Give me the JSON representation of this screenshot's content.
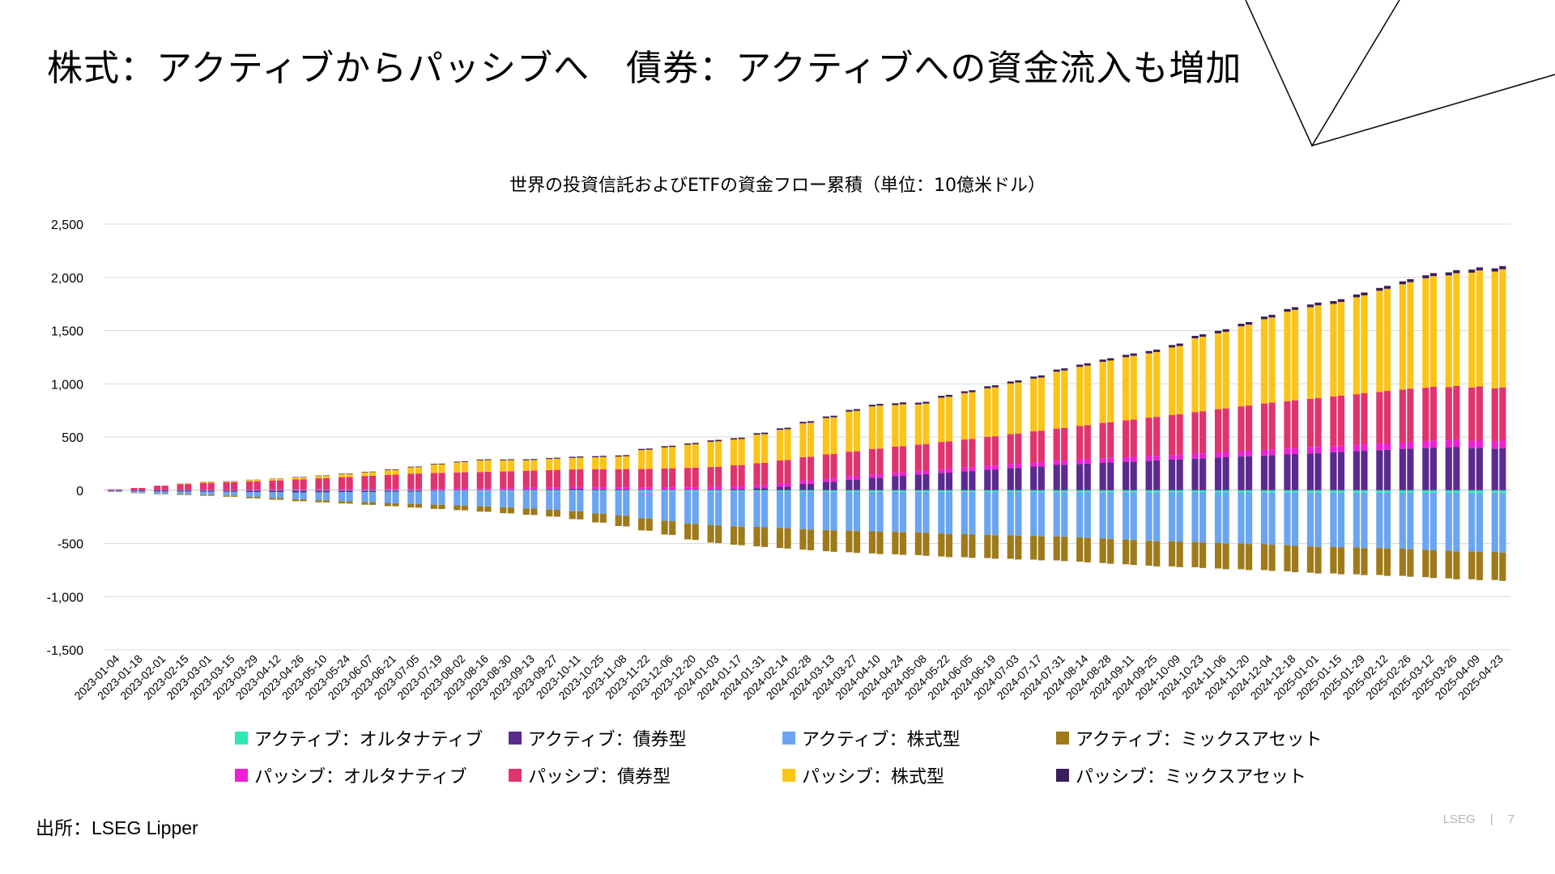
{
  "slide": {
    "title": "株式：アクティブからパッシブへ　債券：アクティブへの資金流入も増加",
    "source": "出所：LSEG Lipper",
    "footer_brand": "LSEG",
    "footer_sep": "|",
    "page_number": "7"
  },
  "chart_data": {
    "type": "bar",
    "stacked": true,
    "title": "世界の投資信託およびETFの資金フロー累積（単位：10億米ドル）",
    "ylim": [
      -1500,
      2500
    ],
    "yticks": [
      2500,
      2000,
      1500,
      1000,
      500,
      0,
      -500,
      -1000,
      -1500
    ],
    "ytick_labels": [
      "2,500",
      "2,000",
      "1,500",
      "1,000",
      "500",
      "0",
      "-500",
      "-1,000",
      "-1,500"
    ],
    "grid": true,
    "legend_position": "bottom",
    "xtick_labels": [
      "2023-01-04",
      "2023-01-18",
      "2023-02-01",
      "2023-02-15",
      "2023-03-01",
      "2023-03-15",
      "2023-03-29",
      "2023-04-12",
      "2023-04-26",
      "2023-05-10",
      "2023-05-24",
      "2023-06-07",
      "2023-06-21",
      "2023-07-05",
      "2023-07-19",
      "2023-08-02",
      "2023-08-16",
      "2023-08-30",
      "2023-09-13",
      "2023-09-27",
      "2023-10-11",
      "2023-10-25",
      "2023-11-08",
      "2023-11-22",
      "2023-12-06",
      "2023-12-20",
      "2024-01-03",
      "2024-01-17",
      "2024-01-31",
      "2024-02-14",
      "2024-02-28",
      "2024-03-13",
      "2024-03-27",
      "2024-04-10",
      "2024-04-24",
      "2024-05-08",
      "2024-05-22",
      "2024-06-05",
      "2024-06-19",
      "2024-07-03",
      "2024-07-17",
      "2024-07-31",
      "2024-08-14",
      "2024-08-28",
      "2024-09-11",
      "2024-09-25",
      "2024-10-09",
      "2024-10-23",
      "2024-11-06",
      "2024-11-20",
      "2024-12-04",
      "2024-12-18",
      "2025-01-01",
      "2025-01-15",
      "2025-01-29",
      "2025-02-12",
      "2025-02-26",
      "2025-03-12",
      "2025-03-26",
      "2025-04-09",
      "2025-04-23"
    ],
    "series": [
      {
        "name": "アクティブ：オルタナティブ",
        "color": "#2ee8b6",
        "group": "neg",
        "values": [
          0,
          -1,
          -2,
          -2,
          -3,
          -3,
          -4,
          -4,
          -5,
          -5,
          -5,
          -6,
          -6,
          -6,
          -7,
          -7,
          -8,
          -8,
          -8,
          -9,
          -9,
          -10,
          -10,
          -11,
          -11,
          -12,
          -12,
          -12,
          -13,
          -13,
          -14,
          -14,
          -14,
          -15,
          -15,
          -15,
          -16,
          -16,
          -17,
          -17,
          -18,
          -18,
          -18,
          -19,
          -19,
          -20,
          -20,
          -21,
          -21,
          -21,
          -22,
          -22,
          -23,
          -23,
          -24,
          -24,
          -25,
          -25,
          -25,
          -26,
          -26
        ]
      },
      {
        "name": "アクティブ：債券型",
        "color": "#5b2a8e",
        "group": "mixed",
        "values": [
          -5,
          -8,
          -10,
          -10,
          -10,
          -12,
          -14,
          -15,
          -16,
          -15,
          -14,
          -12,
          -10,
          -8,
          -5,
          -2,
          0,
          2,
          5,
          8,
          10,
          8,
          6,
          4,
          3,
          3,
          5,
          10,
          20,
          35,
          60,
          80,
          100,
          118,
          135,
          150,
          165,
          180,
          195,
          210,
          225,
          240,
          250,
          262,
          270,
          280,
          290,
          300,
          310,
          320,
          330,
          340,
          350,
          360,
          370,
          380,
          390,
          400,
          405,
          400,
          395
        ]
      },
      {
        "name": "アクティブ：株式型",
        "color": "#6aa5f2",
        "group": "neg",
        "values": [
          -10,
          -15,
          -20,
          -25,
          -30,
          -35,
          -45,
          -55,
          -65,
          -75,
          -85,
          -95,
          -105,
          -115,
          -125,
          -135,
          -145,
          -155,
          -165,
          -175,
          -190,
          -210,
          -230,
          -255,
          -280,
          -305,
          -320,
          -330,
          -335,
          -345,
          -355,
          -365,
          -370,
          -375,
          -380,
          -385,
          -395,
          -400,
          -405,
          -410,
          -415,
          -420,
          -430,
          -440,
          -450,
          -460,
          -465,
          -470,
          -480,
          -485,
          -490,
          -500,
          -510,
          -515,
          -520,
          -525,
          -530,
          -540,
          -550,
          -555,
          -560
        ]
      },
      {
        "name": "アクティブ：ミックスアセット",
        "color": "#9e7a1a",
        "group": "neg",
        "values": [
          -2,
          -4,
          -6,
          -8,
          -10,
          -12,
          -14,
          -16,
          -18,
          -20,
          -22,
          -25,
          -30,
          -35,
          -40,
          -45,
          -50,
          -55,
          -60,
          -65,
          -75,
          -85,
          -100,
          -115,
          -130,
          -150,
          -165,
          -175,
          -185,
          -190,
          -195,
          -200,
          -205,
          -210,
          -213,
          -216,
          -218,
          -220,
          -222,
          -224,
          -226,
          -228,
          -230,
          -232,
          -234,
          -236,
          -238,
          -240,
          -242,
          -244,
          -246,
          -248,
          -250,
          -252,
          -254,
          -256,
          -258,
          -260,
          -262,
          -264,
          -266
        ]
      },
      {
        "name": "パッシブ：オルタナティブ",
        "color": "#f01fd6",
        "group": "pos",
        "values": [
          0,
          1,
          2,
          3,
          4,
          5,
          6,
          7,
          8,
          8,
          9,
          10,
          11,
          12,
          13,
          14,
          15,
          16,
          17,
          18,
          19,
          20,
          21,
          22,
          23,
          24,
          25,
          26,
          27,
          28,
          29,
          30,
          31,
          32,
          33,
          34,
          35,
          36,
          37,
          38,
          39,
          40,
          41,
          42,
          43,
          44,
          45,
          47,
          49,
          51,
          53,
          55,
          57,
          59,
          61,
          63,
          65,
          67,
          69,
          70,
          71
        ]
      },
      {
        "name": "パッシブ：債券型",
        "color": "#e0336f",
        "group": "pos",
        "values": [
          8,
          20,
          40,
          55,
          65,
          70,
          78,
          85,
          95,
          105,
          115,
          125,
          135,
          145,
          150,
          155,
          158,
          160,
          162,
          165,
          168,
          170,
          172,
          175,
          180,
          185,
          190,
          200,
          210,
          220,
          225,
          230,
          235,
          240,
          245,
          250,
          258,
          265,
          275,
          285,
          295,
          305,
          320,
          335,
          350,
          365,
          380,
          395,
          410,
          425,
          440,
          450,
          460,
          470,
          480,
          490,
          500,
          505,
          505,
          505,
          500
        ]
      },
      {
        "name": "パッシブ：株式型",
        "color": "#fcc419",
        "group": "pos",
        "values": [
          0,
          0,
          0,
          5,
          10,
          10,
          12,
          15,
          18,
          22,
          28,
          35,
          45,
          60,
          80,
          95,
          110,
          105,
          100,
          105,
          110,
          115,
          120,
          180,
          200,
          220,
          240,
          245,
          270,
          290,
          320,
          345,
          380,
          405,
          395,
          380,
          420,
          440,
          460,
          480,
          500,
          540,
          560,
          580,
          600,
          610,
          640,
          700,
          720,
          760,
          800,
          850,
          870,
          880,
          920,
          960,
          1000,
          1040,
          1060,
          1090,
          1110
        ]
      },
      {
        "name": "パッシブ：ミックスアセット",
        "color": "#3a1e5c",
        "group": "pos",
        "values": [
          0,
          0,
          1,
          1,
          2,
          2,
          3,
          3,
          4,
          4,
          5,
          5,
          6,
          6,
          7,
          7,
          8,
          8,
          9,
          9,
          10,
          10,
          11,
          11,
          12,
          12,
          13,
          13,
          14,
          14,
          15,
          15,
          16,
          16,
          17,
          17,
          18,
          18,
          19,
          19,
          20,
          20,
          21,
          21,
          22,
          22,
          23,
          23,
          24,
          24,
          25,
          25,
          26,
          26,
          27,
          27,
          28,
          28,
          29,
          29,
          30
        ]
      }
    ]
  }
}
